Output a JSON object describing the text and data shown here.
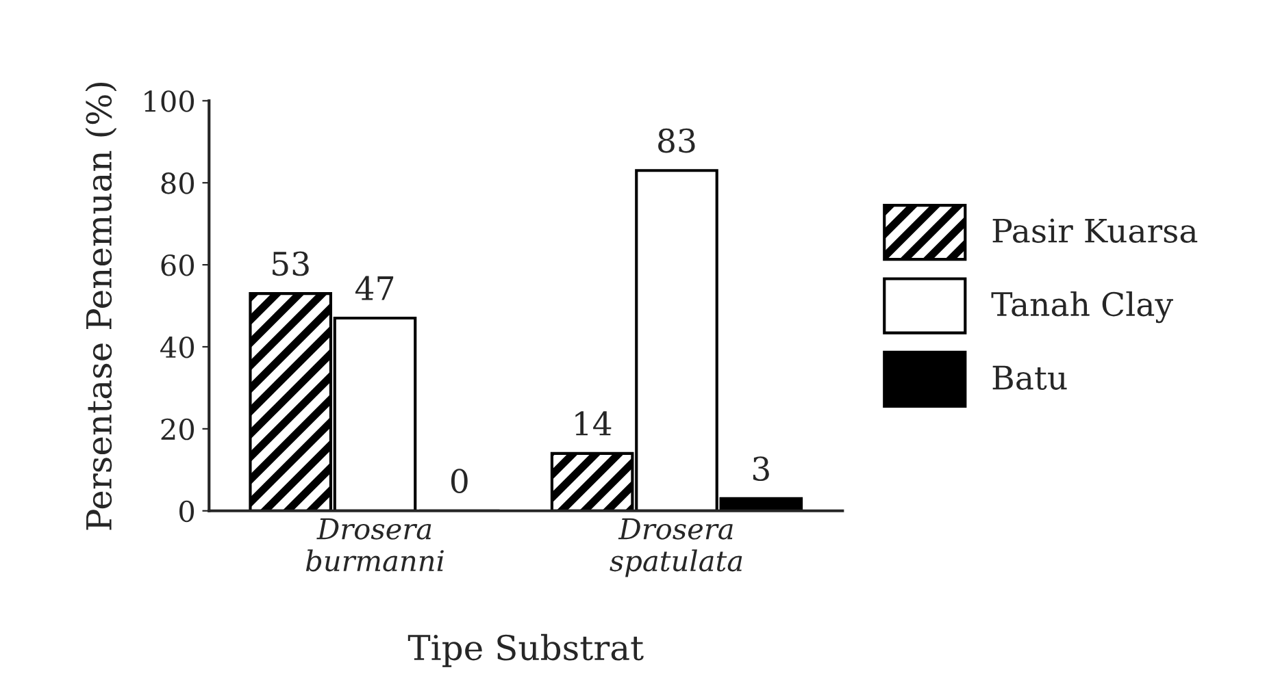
{
  "chart_data": {
    "type": "bar",
    "xlabel": "Tipe Substrat",
    "ylabel": "Persentase Penemuan (%)",
    "categories": [
      "Drosera\nburmanni",
      "Drosera\nspatulata"
    ],
    "series": [
      {
        "name": "Pasir Kuarsa",
        "color": "#000000",
        "values": [
          53,
          14
        ]
      },
      {
        "name": "Tanah Clay",
        "color": "#ffffff",
        "values": [
          47,
          83
        ]
      },
      {
        "name": "Batu",
        "color": "#000000",
        "values": [
          0,
          3
        ]
      }
    ],
    "ylim": [
      0,
      100
    ],
    "yticks": [
      0,
      20,
      40,
      60,
      80,
      100
    ],
    "data_labels": true,
    "grid": false,
    "legend": "right"
  }
}
